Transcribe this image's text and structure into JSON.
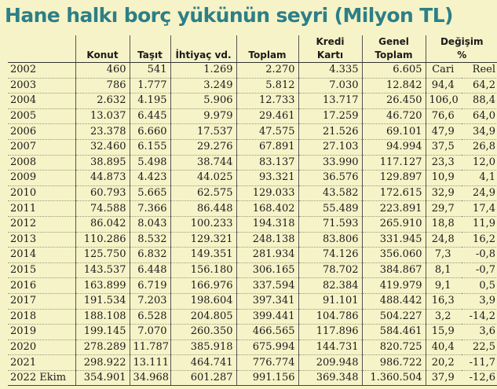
{
  "title": "Hane halkı borç yükünün seyri (Milyon TL)",
  "header": {
    "top": [
      "",
      "",
      "",
      "",
      "",
      "Kredi",
      "Genel",
      "Değişim",
      ""
    ],
    "bottom": [
      "",
      "Konut",
      "Taşıt",
      "İhtiyaç vd.",
      "Toplam",
      "Kartı",
      "Toplam",
      "%",
      ""
    ]
  },
  "rows": [
    [
      "2002",
      "460",
      "541",
      "1.269",
      "2.270",
      "4.335",
      "6.605",
      "Cari",
      "Reel"
    ],
    [
      "2003",
      "786",
      "1.777",
      "3.249",
      "5.812",
      "7.030",
      "12.842",
      "94,4",
      "64,2"
    ],
    [
      "2004",
      "2.632",
      "4.195",
      "5.906",
      "12.733",
      "13.717",
      "26.450",
      "106,0",
      "88,4"
    ],
    [
      "2005",
      "13.037",
      "6.445",
      "9.979",
      "29.461",
      "17.259",
      "46.720",
      "76,6",
      "64,0"
    ],
    [
      "2006",
      "23.378",
      "6.660",
      "17.537",
      "47.575",
      "21.526",
      "69.101",
      "47,9",
      "34,9"
    ],
    [
      "2007",
      "32.460",
      "6.155",
      "29.276",
      "67.891",
      "27.103",
      "94.994",
      "37,5",
      "26,8"
    ],
    [
      "2008",
      "38.895",
      "5.498",
      "38.744",
      "83.137",
      "33.990",
      "117.127",
      "23,3",
      "12,0"
    ],
    [
      "2009",
      "44.873",
      "4.423",
      "44.025",
      "93.321",
      "36.576",
      "129.897",
      "10,9",
      "4,1"
    ],
    [
      "2010",
      "60.793",
      "5.665",
      "62.575",
      "129.033",
      "43.582",
      "172.615",
      "32,9",
      "24,9"
    ],
    [
      "2011",
      "74.588",
      "7.366",
      "86.448",
      "168.402",
      "55.489",
      "223.891",
      "29,7",
      "17,4"
    ],
    [
      "2012",
      "86.042",
      "8.043",
      "100.233",
      "194.318",
      "71.593",
      "265.910",
      "18,8",
      "11,9"
    ],
    [
      "2013",
      "110.286",
      "8.532",
      "129.321",
      "248.138",
      "83.806",
      "331.945",
      "24,8",
      "16,2"
    ],
    [
      "2014",
      "125.750",
      "6.832",
      "149.351",
      "281.934",
      "74.126",
      "356.060",
      "7,3",
      "-0,8"
    ],
    [
      "2015",
      "143.537",
      "6.448",
      "156.180",
      "306.165",
      "78.702",
      "384.867",
      "8,1",
      "-0,7"
    ],
    [
      "2016",
      "163.899",
      "6.719",
      "166.976",
      "337.594",
      "82.384",
      "419.979",
      "9,1",
      "0,5"
    ],
    [
      "2017",
      "191.534",
      "7.203",
      "198.604",
      "397.341",
      "91.101",
      "488.442",
      "16,3",
      "3,9"
    ],
    [
      "2018",
      "188.108",
      "6.528",
      "204.805",
      "399.441",
      "104.786",
      "504.227",
      "3,2",
      "-14,2"
    ],
    [
      "2019",
      "199.145",
      "7.070",
      "260.350",
      "466.565",
      "117.896",
      "584.461",
      "15,9",
      "3,6"
    ],
    [
      "2020",
      "278.289",
      "11.787",
      "385.918",
      "675.994",
      "144.731",
      "820.725",
      "40,4",
      "22,5"
    ],
    [
      "2021",
      "298.922",
      "13.111",
      "464.741",
      "776.774",
      "209.948",
      "986.722",
      "20,2",
      "-11,7"
    ],
    [
      "2022 Ekim",
      "354.901",
      "34.968",
      "601.287",
      "991.156",
      "369.348",
      "1.360.504",
      "37,9",
      "-12,6"
    ]
  ]
}
